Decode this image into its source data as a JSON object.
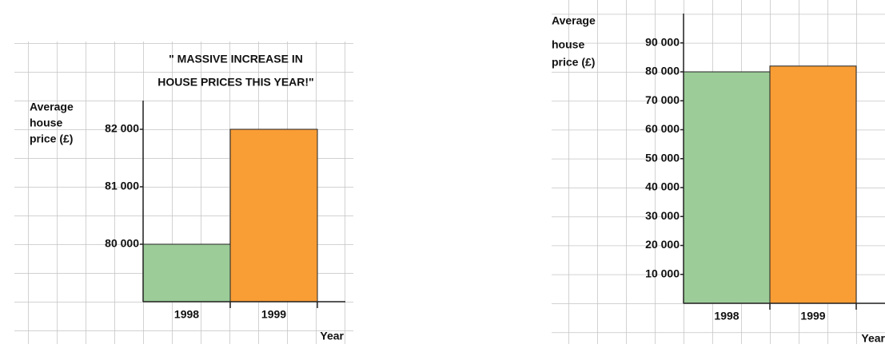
{
  "chart_data": [
    {
      "type": "bar",
      "title": [
        "\" MASSIVE INCREASE  IN",
        "HOUSE PRICES THIS YEAR!\""
      ],
      "y_label": [
        "Average",
        "house",
        "price (£)"
      ],
      "x_label": "Year",
      "categories": [
        "1998",
        "1999"
      ],
      "values": [
        80000,
        82000
      ],
      "colors": [
        "#9ccc98",
        "#f99d35"
      ],
      "ylim": [
        79000,
        82500
      ],
      "yticks": [
        {
          "value": 80000,
          "label": "80 000"
        },
        {
          "value": 81000,
          "label": "81 000"
        },
        {
          "value": 82000,
          "label": "82 000"
        }
      ]
    },
    {
      "type": "bar",
      "y_label": [
        "Average",
        "house",
        "price (£)"
      ],
      "x_label": "Year",
      "categories": [
        "1998",
        "1999"
      ],
      "values": [
        80000,
        82000
      ],
      "colors": [
        "#9ccc98",
        "#f99d35"
      ],
      "ylim": [
        0,
        100000
      ],
      "yticks": [
        {
          "value": 10000,
          "label": "10 000"
        },
        {
          "value": 20000,
          "label": "20 000"
        },
        {
          "value": 30000,
          "label": "30 000"
        },
        {
          "value": 40000,
          "label": "40 000"
        },
        {
          "value": 50000,
          "label": "50 000"
        },
        {
          "value": 60000,
          "label": "60 000"
        },
        {
          "value": 70000,
          "label": "70 000"
        },
        {
          "value": 80000,
          "label": "80 000"
        },
        {
          "value": 90000,
          "label": "90 000"
        }
      ]
    }
  ]
}
